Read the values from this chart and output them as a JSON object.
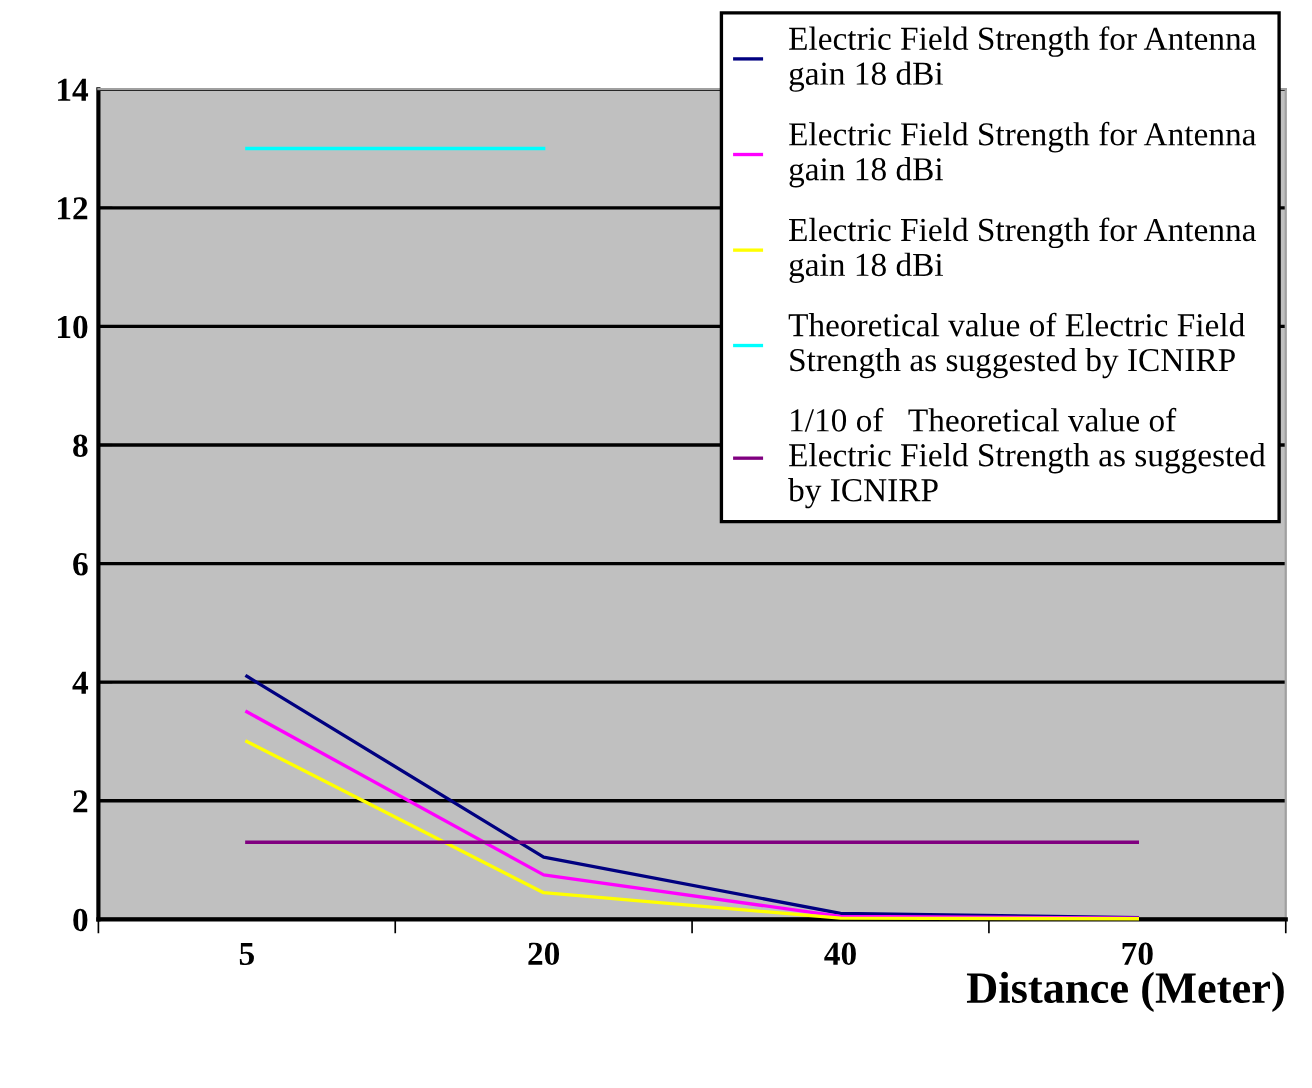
{
  "chart_data": {
    "type": "line",
    "xlabel": "Distance (Meter)",
    "categories": [
      "5",
      "20",
      "40",
      "70"
    ],
    "series": [
      {
        "name": "Electric Field Strength for Antenna\ngain 18 dBi",
        "color": "#000080",
        "values": [
          4.1,
          1.05,
          0.1,
          0.03
        ]
      },
      {
        "name": "Electric Field Strength for Antenna\ngain 18 dBi",
        "color": "#ff00ff",
        "values": [
          3.5,
          0.75,
          0.05,
          0.02
        ]
      },
      {
        "name": "Electric Field Strength for Antenna\ngain 18 dBi",
        "color": "#ffff00",
        "values": [
          3.0,
          0.45,
          0.02,
          0.01
        ]
      },
      {
        "name": "Theoretical value of Electric Field\nStrength as suggested by ICNIRP",
        "color": "#00ffff",
        "values": [
          13,
          13,
          null,
          null
        ]
      },
      {
        "name": "1/10 of   Theoretical value of\nElectric Field Strength as suggested\nby ICNIRP",
        "color": "#800080",
        "values": [
          1.3,
          1.3,
          1.3,
          1.3
        ]
      }
    ],
    "ylim": [
      0,
      14
    ],
    "yticks": [
      0,
      2,
      4,
      6,
      8,
      10,
      12,
      14
    ],
    "grid": "y",
    "legend": "top right",
    "marker": "none",
    "line_style": "solid"
  }
}
